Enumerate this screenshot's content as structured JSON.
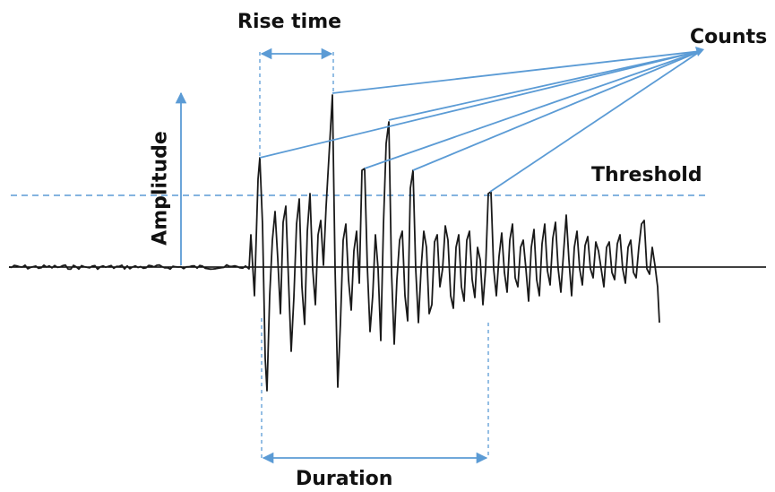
{
  "labels": {
    "rise_time": "Rise time",
    "counts": "Counts",
    "threshold": "Threshold",
    "amplitude": "Amplitude",
    "duration": "Duration"
  },
  "colors": {
    "annotation": "#5b9bd5",
    "signal": "#1a1a1a",
    "baseline": "#000000"
  }
}
